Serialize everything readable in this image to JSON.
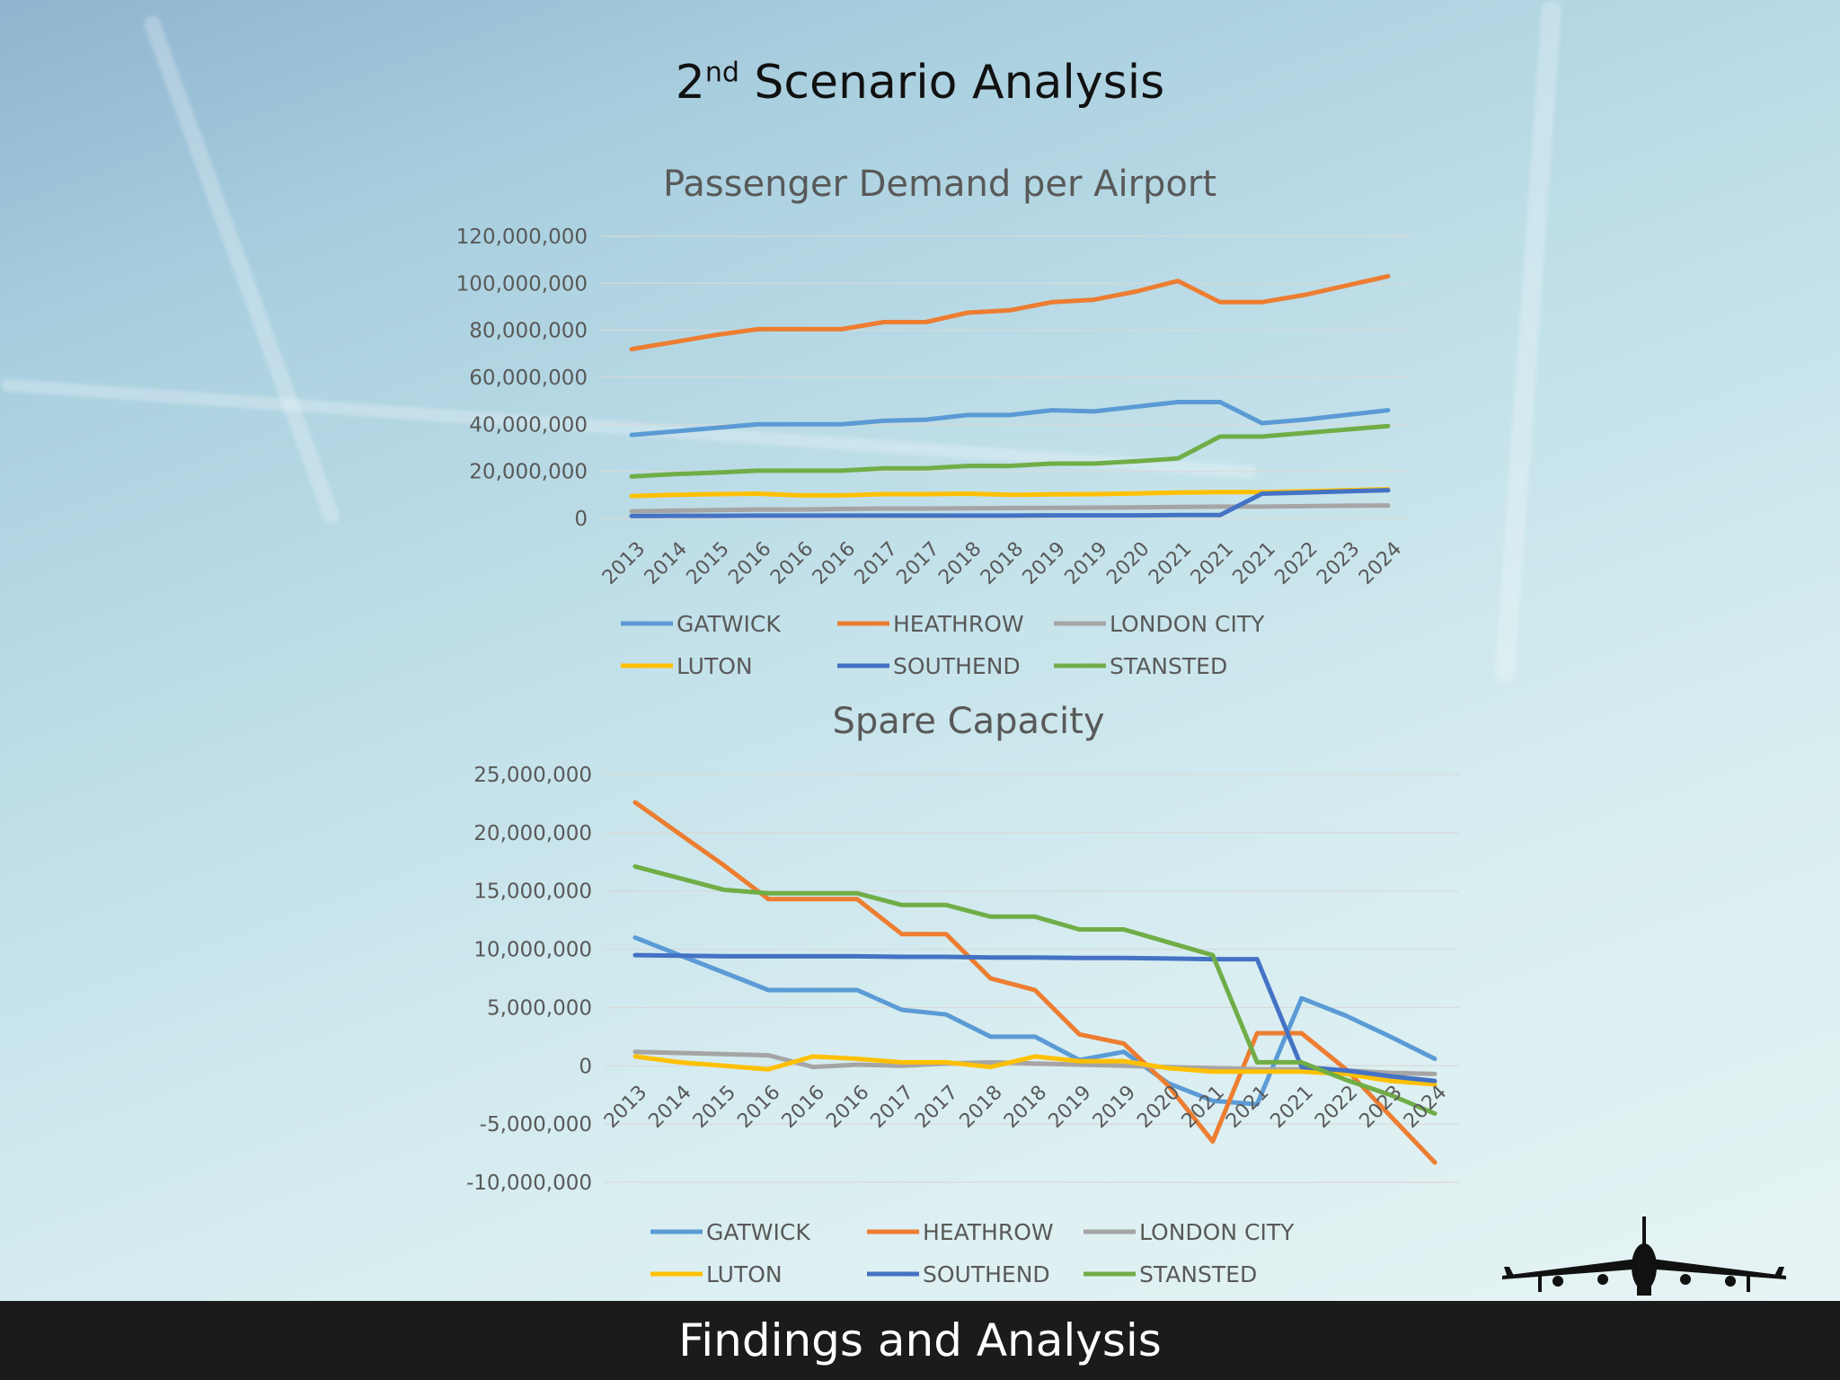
{
  "slide": {
    "title_main": "Scenario Analysis",
    "title_ordinal": "2",
    "title_ordinal_suffix": "nd",
    "footer": "Findings and Analysis"
  },
  "colors": {
    "GATWICK": "#5b9bd5",
    "HEATHROW": "#ed7d31",
    "LONDON CITY": "#a5a5a5",
    "LUTON": "#ffc000",
    "SOUTHEND": "#4472c4",
    "STANSTED": "#70ad47"
  },
  "chart_data": [
    {
      "type": "line",
      "title": "Passenger Demand per Airport",
      "xlabel": "",
      "ylabel": "",
      "categories": [
        "2013",
        "2014",
        "2015",
        "2016",
        "2016",
        "2016",
        "2017",
        "2017",
        "2018",
        "2018",
        "2019",
        "2019",
        "2020",
        "2021",
        "2021",
        "2021",
        "2022",
        "2023",
        "2024"
      ],
      "ylim": [
        0,
        120000000
      ],
      "yticks": [
        "120,000,000",
        "100,000,000",
        "80,000,000",
        "60,000,000",
        "40,000,000",
        "20,000,000",
        "0"
      ],
      "grid": true,
      "legend_position": "bottom",
      "series": [
        {
          "name": "GATWICK",
          "values": [
            35500000,
            37000000,
            38500000,
            40000000,
            40000000,
            40000000,
            41500000,
            42000000,
            44000000,
            44000000,
            46000000,
            45500000,
            47500000,
            49500000,
            49500000,
            40500000,
            42000000,
            44000000,
            46000000
          ]
        },
        {
          "name": "HEATHROW",
          "values": [
            72000000,
            75000000,
            78000000,
            80500000,
            80500000,
            80500000,
            83500000,
            83500000,
            87500000,
            88500000,
            92000000,
            93000000,
            96500000,
            101000000,
            92000000,
            92000000,
            95000000,
            99000000,
            103000000
          ]
        },
        {
          "name": "LONDON CITY",
          "values": [
            3000000,
            3300000,
            3500000,
            3800000,
            3800000,
            4000000,
            4200000,
            4200000,
            4300000,
            4400000,
            4500000,
            4600000,
            4700000,
            4900000,
            5000000,
            5000000,
            5200000,
            5400000,
            5500000
          ]
        },
        {
          "name": "LUTON",
          "values": [
            9500000,
            10000000,
            10300000,
            10500000,
            9800000,
            9800000,
            10300000,
            10300000,
            10500000,
            10000000,
            10200000,
            10300000,
            10600000,
            11000000,
            11200000,
            11200000,
            11500000,
            12000000,
            12400000
          ]
        },
        {
          "name": "SOUTHEND",
          "values": [
            1000000,
            1100000,
            1100000,
            1200000,
            1200000,
            1200000,
            1200000,
            1200000,
            1200000,
            1200000,
            1300000,
            1300000,
            1300000,
            1400000,
            1400000,
            10500000,
            11000000,
            11500000,
            12000000
          ]
        },
        {
          "name": "STANSTED",
          "values": [
            17800000,
            18800000,
            19500000,
            20300000,
            20300000,
            20300000,
            21300000,
            21300000,
            22300000,
            22300000,
            23300000,
            23300000,
            24300000,
            25500000,
            34800000,
            34800000,
            36300000,
            37800000,
            39300000
          ]
        }
      ]
    },
    {
      "type": "line",
      "title": "Spare Capacity",
      "xlabel": "",
      "ylabel": "",
      "categories": [
        "2013",
        "2014",
        "2015",
        "2016",
        "2016",
        "2016",
        "2017",
        "2017",
        "2018",
        "2018",
        "2019",
        "2019",
        "2020",
        "2021",
        "2021",
        "2021",
        "2022",
        "2023",
        "2024"
      ],
      "ylim": [
        -10000000,
        25000000
      ],
      "yticks": [
        "25,000,000",
        "20,000,000",
        "15,000,000",
        "10,000,000",
        "5,000,000",
        "0",
        "-5,000,000",
        "-10,000,000"
      ],
      "grid": true,
      "legend_position": "bottom",
      "series": [
        {
          "name": "GATWICK",
          "values": [
            11000000,
            9500000,
            8000000,
            6500000,
            6500000,
            6500000,
            4800000,
            4400000,
            2500000,
            2500000,
            500000,
            1200000,
            -1500000,
            -3000000,
            -3300000,
            5800000,
            4300000,
            2500000,
            600000
          ]
        },
        {
          "name": "HEATHROW",
          "values": [
            22600000,
            19900000,
            17200000,
            14300000,
            14300000,
            14300000,
            11300000,
            11300000,
            7500000,
            6500000,
            2700000,
            1900000,
            -1700000,
            -6500000,
            2800000,
            2800000,
            -300000,
            -4300000,
            -8300000
          ]
        },
        {
          "name": "LONDON CITY",
          "values": [
            1200000,
            1100000,
            1000000,
            900000,
            -100000,
            100000,
            0,
            200000,
            300000,
            200000,
            100000,
            0,
            -100000,
            -200000,
            -300000,
            -300000,
            -400000,
            -600000,
            -700000
          ]
        },
        {
          "name": "LUTON",
          "values": [
            800000,
            300000,
            0,
            -300000,
            800000,
            600000,
            300000,
            300000,
            -100000,
            800000,
            400000,
            400000,
            -200000,
            -500000,
            -500000,
            -500000,
            -700000,
            -1300000,
            -1600000
          ]
        },
        {
          "name": "SOUTHEND",
          "values": [
            9500000,
            9450000,
            9400000,
            9400000,
            9400000,
            9400000,
            9350000,
            9350000,
            9300000,
            9300000,
            9250000,
            9250000,
            9200000,
            9150000,
            9150000,
            -100000,
            -400000,
            -900000,
            -1300000
          ]
        },
        {
          "name": "STANSTED",
          "values": [
            17100000,
            16100000,
            15100000,
            14800000,
            14800000,
            14800000,
            13800000,
            13800000,
            12800000,
            12800000,
            11700000,
            11700000,
            10600000,
            9500000,
            300000,
            300000,
            -1200000,
            -2500000,
            -4100000
          ]
        }
      ]
    }
  ]
}
